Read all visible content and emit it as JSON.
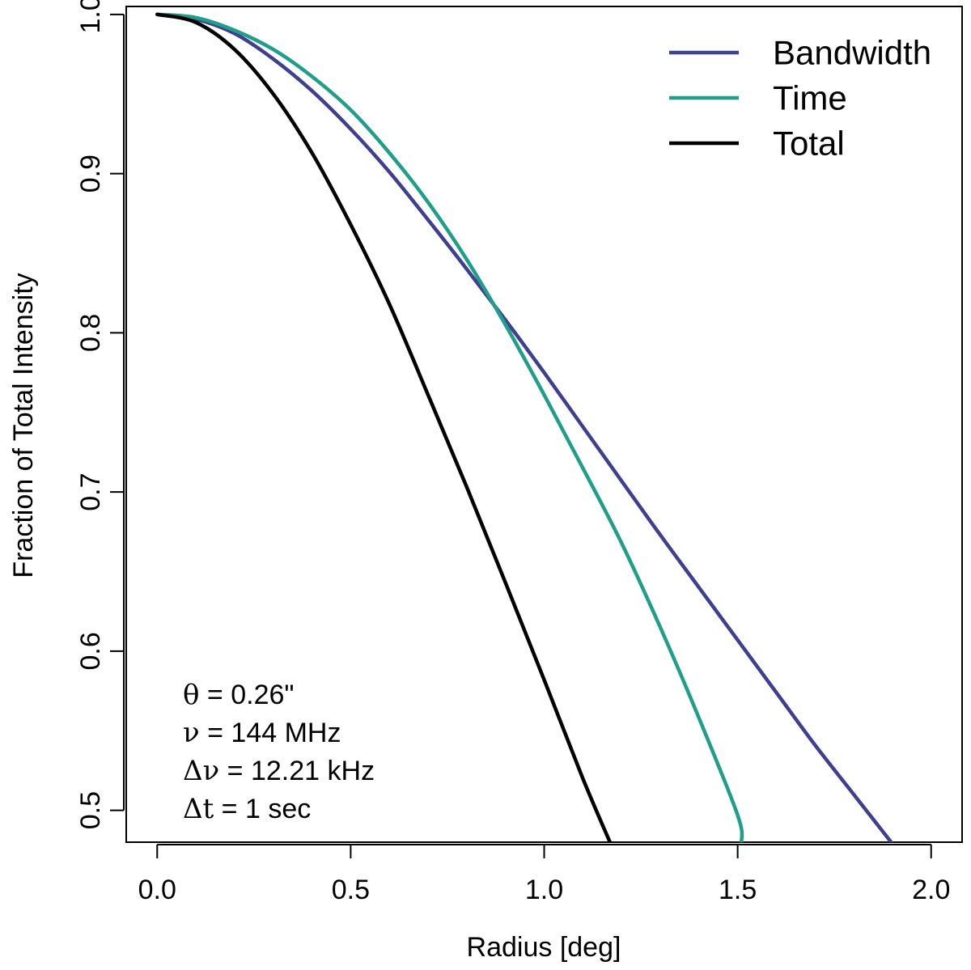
{
  "chart_data": {
    "type": "line",
    "title": "",
    "xlabel": "Radius [deg]",
    "ylabel": "Fraction of Total Intensity",
    "xlim": [
      -0.08,
      2.08
    ],
    "ylim": [
      0.48,
      1.005
    ],
    "xticks": [
      0.0,
      0.5,
      1.0,
      1.5,
      2.0
    ],
    "xtick_labels": [
      "0.0",
      "0.5",
      "1.0",
      "1.5",
      "2.0"
    ],
    "yticks": [
      0.5,
      0.6,
      0.7,
      0.8,
      0.9,
      1.0
    ],
    "ytick_labels": [
      "0.5",
      "0.6",
      "0.7",
      "0.8",
      "0.9",
      "1.0"
    ],
    "grid": false,
    "legend_position": "top-right",
    "series": [
      {
        "name": "Bandwidth",
        "color": "#3f3f8f",
        "x": [
          0.0,
          0.1,
          0.2,
          0.3,
          0.4,
          0.5,
          0.6,
          0.7,
          0.8,
          0.9,
          1.0,
          1.1,
          1.2,
          1.3,
          1.4,
          1.5,
          1.6,
          1.7,
          1.8,
          1.9
        ],
        "y": [
          1.0,
          0.997,
          0.988,
          0.972,
          0.952,
          0.928,
          0.901,
          0.871,
          0.84,
          0.808,
          0.775,
          0.741,
          0.707,
          0.673,
          0.64,
          0.607,
          0.574,
          0.541,
          0.51,
          0.479
        ]
      },
      {
        "name": "Time",
        "color": "#1f9e89",
        "x": [
          0.0,
          0.1,
          0.2,
          0.3,
          0.4,
          0.5,
          0.6,
          0.7,
          0.8,
          0.9,
          1.0,
          1.1,
          1.2,
          1.3,
          1.4,
          1.5,
          1.51
        ],
        "y": [
          1.0,
          0.998,
          0.99,
          0.978,
          0.961,
          0.94,
          0.913,
          0.882,
          0.846,
          0.805,
          0.761,
          0.715,
          0.668,
          0.615,
          0.558,
          0.497,
          0.48
        ]
      },
      {
        "name": "Total",
        "color": "#000000",
        "x": [
          0.0,
          0.1,
          0.2,
          0.3,
          0.4,
          0.5,
          0.6,
          0.7,
          0.8,
          0.9,
          1.0,
          1.1,
          1.17
        ],
        "y": [
          1.0,
          0.995,
          0.978,
          0.95,
          0.913,
          0.868,
          0.818,
          0.761,
          0.703,
          0.643,
          0.582,
          0.52,
          0.48
        ]
      }
    ],
    "annotations": [
      {
        "symbol": "θ",
        "text": " = 0.26\""
      },
      {
        "symbol": "ν",
        "text": " = 144 MHz"
      },
      {
        "symbol": "Δν",
        "text": " = 12.21 kHz"
      },
      {
        "symbol": "Δt",
        "text": " = 1 sec"
      }
    ]
  }
}
